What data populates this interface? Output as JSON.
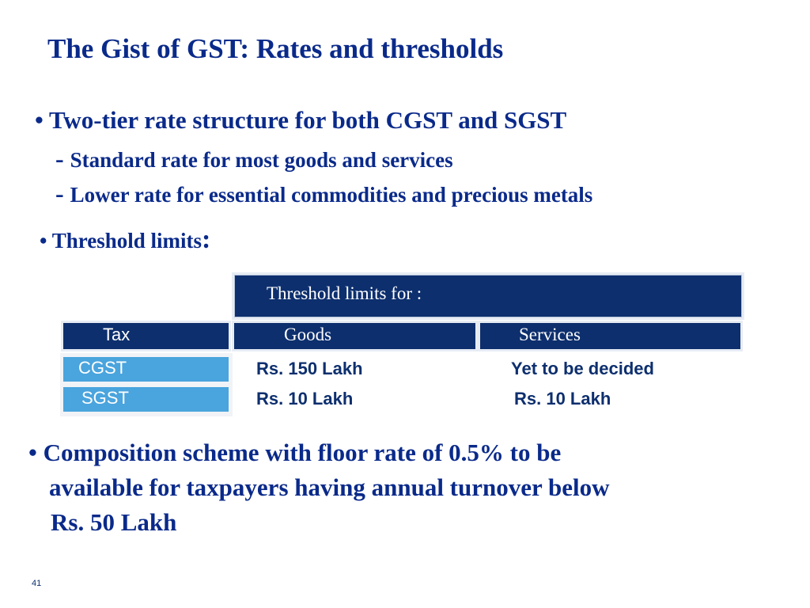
{
  "slide": {
    "title": "The Gist of GST: Rates and thresholds",
    "bullets": {
      "b1": "• Two-tier rate structure for both CGST and SGST",
      "s1_dash": "- ",
      "s1": "Standard rate for most goods and services",
      "s2_dash": "- ",
      "s2": "Lower rate for essential commodities and precious metals",
      "b2": "• Threshold limits",
      "b2_colon": ":",
      "b3_line1": "• Composition scheme with floor rate of 0.5% to be",
      "b3_line2": "available for taxpayers having annual turnover below",
      "b3_line3": "Rs. 50 Lakh"
    },
    "table": {
      "header": "Threshold limits for :",
      "columns": [
        "Tax",
        "Goods",
        "Services"
      ],
      "rows": [
        {
          "tax": "CGST",
          "goods": "Rs. 150 Lakh",
          "services": "Yet to be decided"
        },
        {
          "tax": "SGST",
          "goods": "Rs. 10 Lakh",
          "services": "Rs. 10 Lakh"
        }
      ]
    },
    "page_number": "41",
    "colors": {
      "dark_navy": "#0d2f6e",
      "light_blue": "#4aa4dd",
      "text_blue": "#0a2a8a"
    }
  }
}
